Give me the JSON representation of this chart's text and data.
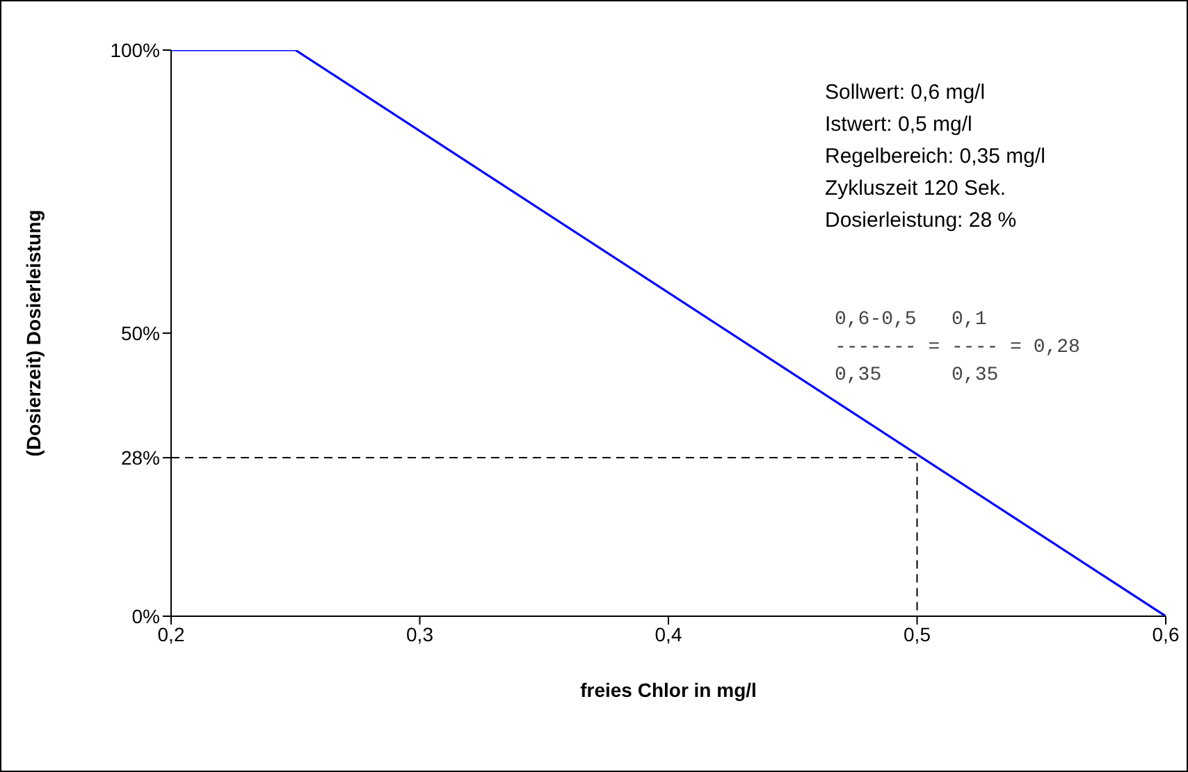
{
  "chart_data": {
    "type": "line",
    "xlabel": "freies Chlor in mg/l",
    "ylabel": "(Dosierzeit) Dosierleistung",
    "xlim": [
      0.2,
      0.6
    ],
    "xticks": [
      {
        "value": 0.2,
        "label": "0,2"
      },
      {
        "value": 0.3,
        "label": "0,3"
      },
      {
        "value": 0.4,
        "label": "0,4"
      },
      {
        "value": 0.5,
        "label": "0,5"
      },
      {
        "value": 0.6,
        "label": "0,6"
      }
    ],
    "ylim": [
      0,
      100
    ],
    "yticks": [
      {
        "value": 0,
        "label": "0%"
      },
      {
        "value": 28,
        "label": "28%"
      },
      {
        "value": 50,
        "label": "50%"
      },
      {
        "value": 100,
        "label": "100%"
      }
    ],
    "grid": false,
    "legend": false,
    "marker": "none",
    "series": [
      {
        "color": "#0000ff",
        "x": [
          0.2,
          0.25,
          0.6
        ],
        "values": [
          100,
          100,
          0
        ],
        "line_style": "solid"
      },
      {
        "color": "#000000",
        "x": [
          0.2,
          0.5,
          0.5
        ],
        "values": [
          28,
          28,
          0
        ],
        "line_style": "dashed"
      }
    ],
    "annotations": [
      "Sollwert: 0,6 mg/l",
      "Istwert: 0,5 mg/l",
      "Regelbereich: 0,35 mg/l",
      "Zykluszeit 120 Sek.",
      "Dosierleistung: 28 %",
      "0,6-0,5   0,1",
      "------- = ---- = 0,28",
      "0,35      0,35"
    ]
  }
}
